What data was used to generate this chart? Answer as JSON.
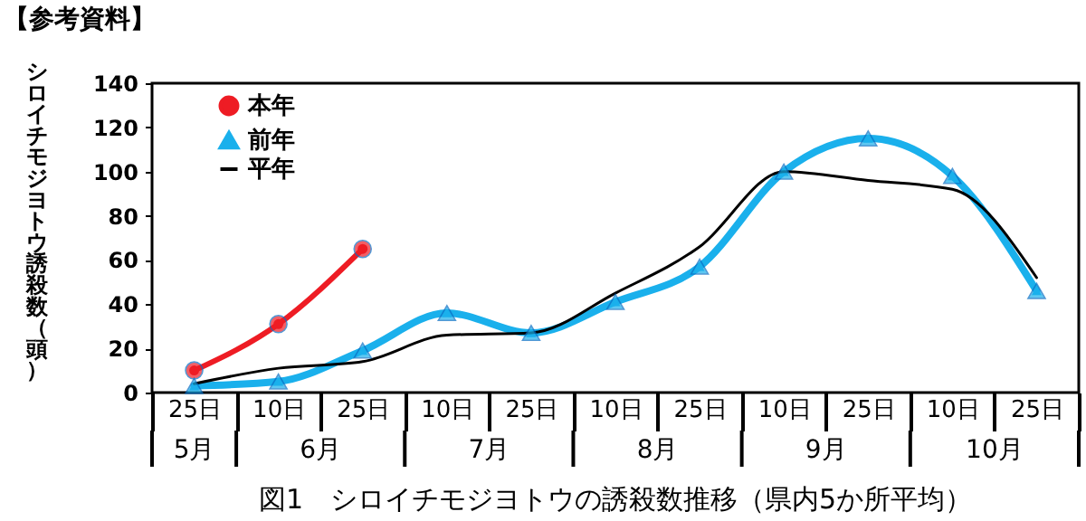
{
  "chart_data": {
    "type": "line",
    "title": "図1　シロイチモジヨトウの誘殺数推移（県内5か所平均）",
    "subtitle": "【参考資料】",
    "ylabel": "シロイチモジヨトウ誘殺数（頭）",
    "categories": [
      "25日",
      "10日",
      "25日",
      "10日",
      "25日",
      "10日",
      "25日",
      "10日",
      "25日",
      "10日",
      "25日"
    ],
    "annotations": [
      "5月",
      "6月",
      "7月",
      "8月",
      "9月",
      "10月"
    ],
    "ylim": [
      0,
      140
    ],
    "yticks": [
      0,
      20,
      40,
      60,
      80,
      100,
      120,
      140
    ],
    "grid": false,
    "legend": "top left",
    "series": [
      {
        "name": "本年",
        "color": "#ee1c24",
        "marker": "circle",
        "values": [
          10,
          31,
          65,
          null,
          null,
          null,
          null,
          null,
          null,
          null,
          null
        ]
      },
      {
        "name": "前年",
        "color": "#1ab0ec",
        "marker": "triangle",
        "values": [
          3,
          5,
          19,
          36,
          27,
          41,
          57,
          100,
          115,
          98,
          46
        ]
      },
      {
        "name": "平年",
        "color": "#000000",
        "marker": "none",
        "values": [
          4,
          11,
          14,
          26,
          27,
          45,
          66,
          100,
          96,
          92,
          52
        ]
      }
    ]
  }
}
